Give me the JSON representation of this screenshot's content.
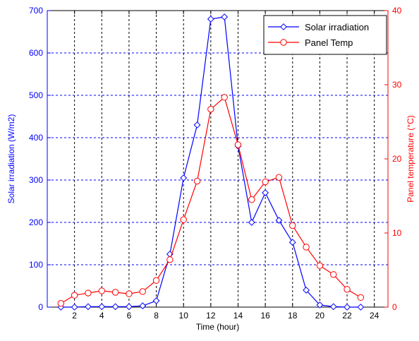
{
  "chart_data": {
    "type": "line",
    "title": "",
    "xlabel": "Time (hour)",
    "ylabel_left": "Solar irradiation  (W/m2)",
    "ylabel_right": "Panel temperature (°C)",
    "xlim": [
      0,
      25
    ],
    "xticks": [
      2,
      4,
      6,
      8,
      10,
      12,
      14,
      16,
      18,
      20,
      22,
      24
    ],
    "ylim_left": [
      0,
      700
    ],
    "yticks_left": [
      0,
      100,
      200,
      300,
      400,
      500,
      600,
      700
    ],
    "ylim_right": [
      0,
      40
    ],
    "yticks_right": [
      0,
      10,
      20,
      30,
      40
    ],
    "grid": true,
    "legend_position": "top-right",
    "series": [
      {
        "name": "Solar irradiation",
        "axis": "left",
        "color": "#0000ff",
        "marker": "diamond",
        "x": [
          1,
          2,
          3,
          4,
          5,
          6,
          7,
          8,
          9,
          10,
          11,
          12,
          13,
          14,
          15,
          16,
          17,
          18,
          19,
          20,
          21,
          22,
          23
        ],
        "values": [
          0,
          0,
          1,
          1,
          1,
          1,
          3,
          15,
          125,
          305,
          430,
          680,
          685,
          380,
          200,
          270,
          205,
          153,
          40,
          5,
          1,
          0,
          0
        ]
      },
      {
        "name": "Panel Temp",
        "axis": "right",
        "color": "#ff0000",
        "marker": "circle",
        "x": [
          1,
          2,
          3,
          4,
          5,
          6,
          7,
          8,
          9,
          10,
          11,
          12,
          13,
          14,
          15,
          16,
          17,
          18,
          19,
          20,
          21,
          22,
          23
        ],
        "values": [
          0.5,
          1.6,
          1.9,
          2.2,
          2.0,
          1.8,
          2.1,
          3.6,
          6.4,
          11.8,
          17.0,
          26.7,
          28.3,
          21.9,
          14.5,
          16.9,
          17.5,
          11.0,
          8.1,
          5.6,
          4.4,
          2.4,
          1.3
        ]
      }
    ]
  }
}
